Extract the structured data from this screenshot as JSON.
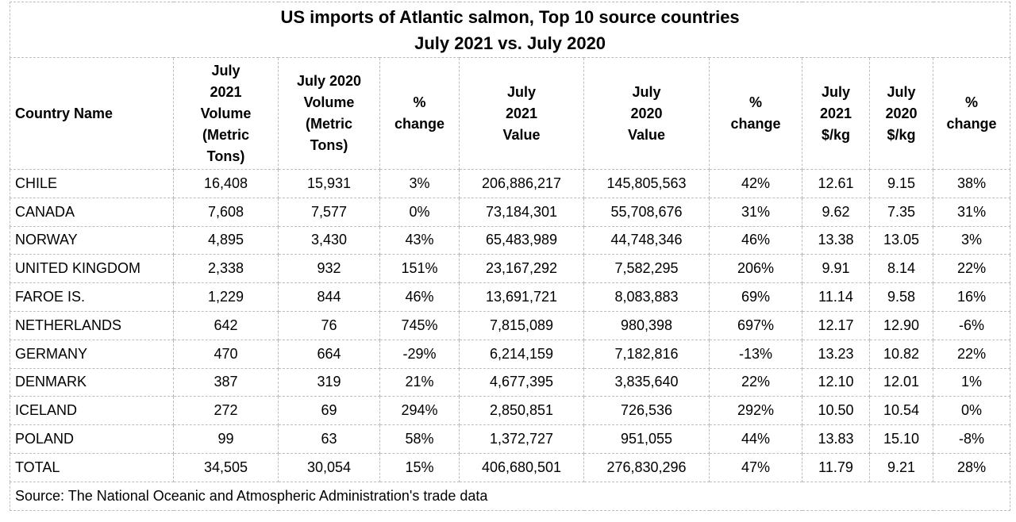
{
  "title": {
    "line1": "US imports of Atlantic salmon, Top 10 source countries",
    "line2": "July 2021 vs. July 2020"
  },
  "table": {
    "header": [
      "Country Name",
      "July 2021 Volume (Metric Tons)",
      "July 2020 Volume (Metric Tons)",
      "% change",
      "July 2021 Value",
      "July 2020 Value",
      "% change",
      "July 2021 $/kg",
      "July 2020 $/kg",
      "% change"
    ],
    "rows": [
      [
        "CHILE",
        "16,408",
        "15,931",
        "3%",
        "206,886,217",
        "145,805,563",
        "42%",
        "12.61",
        "9.15",
        "38%"
      ],
      [
        "CANADA",
        "7,608",
        "7,577",
        "0%",
        "73,184,301",
        "55,708,676",
        "31%",
        "9.62",
        "7.35",
        "31%"
      ],
      [
        "NORWAY",
        "4,895",
        "3,430",
        "43%",
        "65,483,989",
        "44,748,346",
        "46%",
        "13.38",
        "13.05",
        "3%"
      ],
      [
        "UNITED KINGDOM",
        "2,338",
        "932",
        "151%",
        "23,167,292",
        "7,582,295",
        "206%",
        "9.91",
        "8.14",
        "22%"
      ],
      [
        "FAROE IS.",
        "1,229",
        "844",
        "46%",
        "13,691,721",
        "8,083,883",
        "69%",
        "11.14",
        "9.58",
        "16%"
      ],
      [
        "NETHERLANDS",
        "642",
        "76",
        "745%",
        "7,815,089",
        "980,398",
        "697%",
        "12.17",
        "12.90",
        "-6%"
      ],
      [
        "GERMANY",
        "470",
        "664",
        "-29%",
        "6,214,159",
        "7,182,816",
        "-13%",
        "13.23",
        "10.82",
        "22%"
      ],
      [
        "DENMARK",
        "387",
        "319",
        "21%",
        "4,677,395",
        "3,835,640",
        "22%",
        "12.10",
        "12.01",
        "1%"
      ],
      [
        "ICELAND",
        "272",
        "69",
        "294%",
        "2,850,851",
        "726,536",
        "292%",
        "10.50",
        "10.54",
        "0%"
      ],
      [
        "POLAND",
        "99",
        "63",
        "58%",
        "1,372,727",
        "951,055",
        "44%",
        "13.83",
        "15.10",
        "-8%"
      ],
      [
        "TOTAL",
        "34,505",
        "30,054",
        "15%",
        "406,680,501",
        "276,830,296",
        "47%",
        "11.79",
        "9.21",
        "28%"
      ]
    ]
  },
  "footer": {
    "source": "Source: The National Oceanic and Atmospheric Administration's trade data"
  }
}
